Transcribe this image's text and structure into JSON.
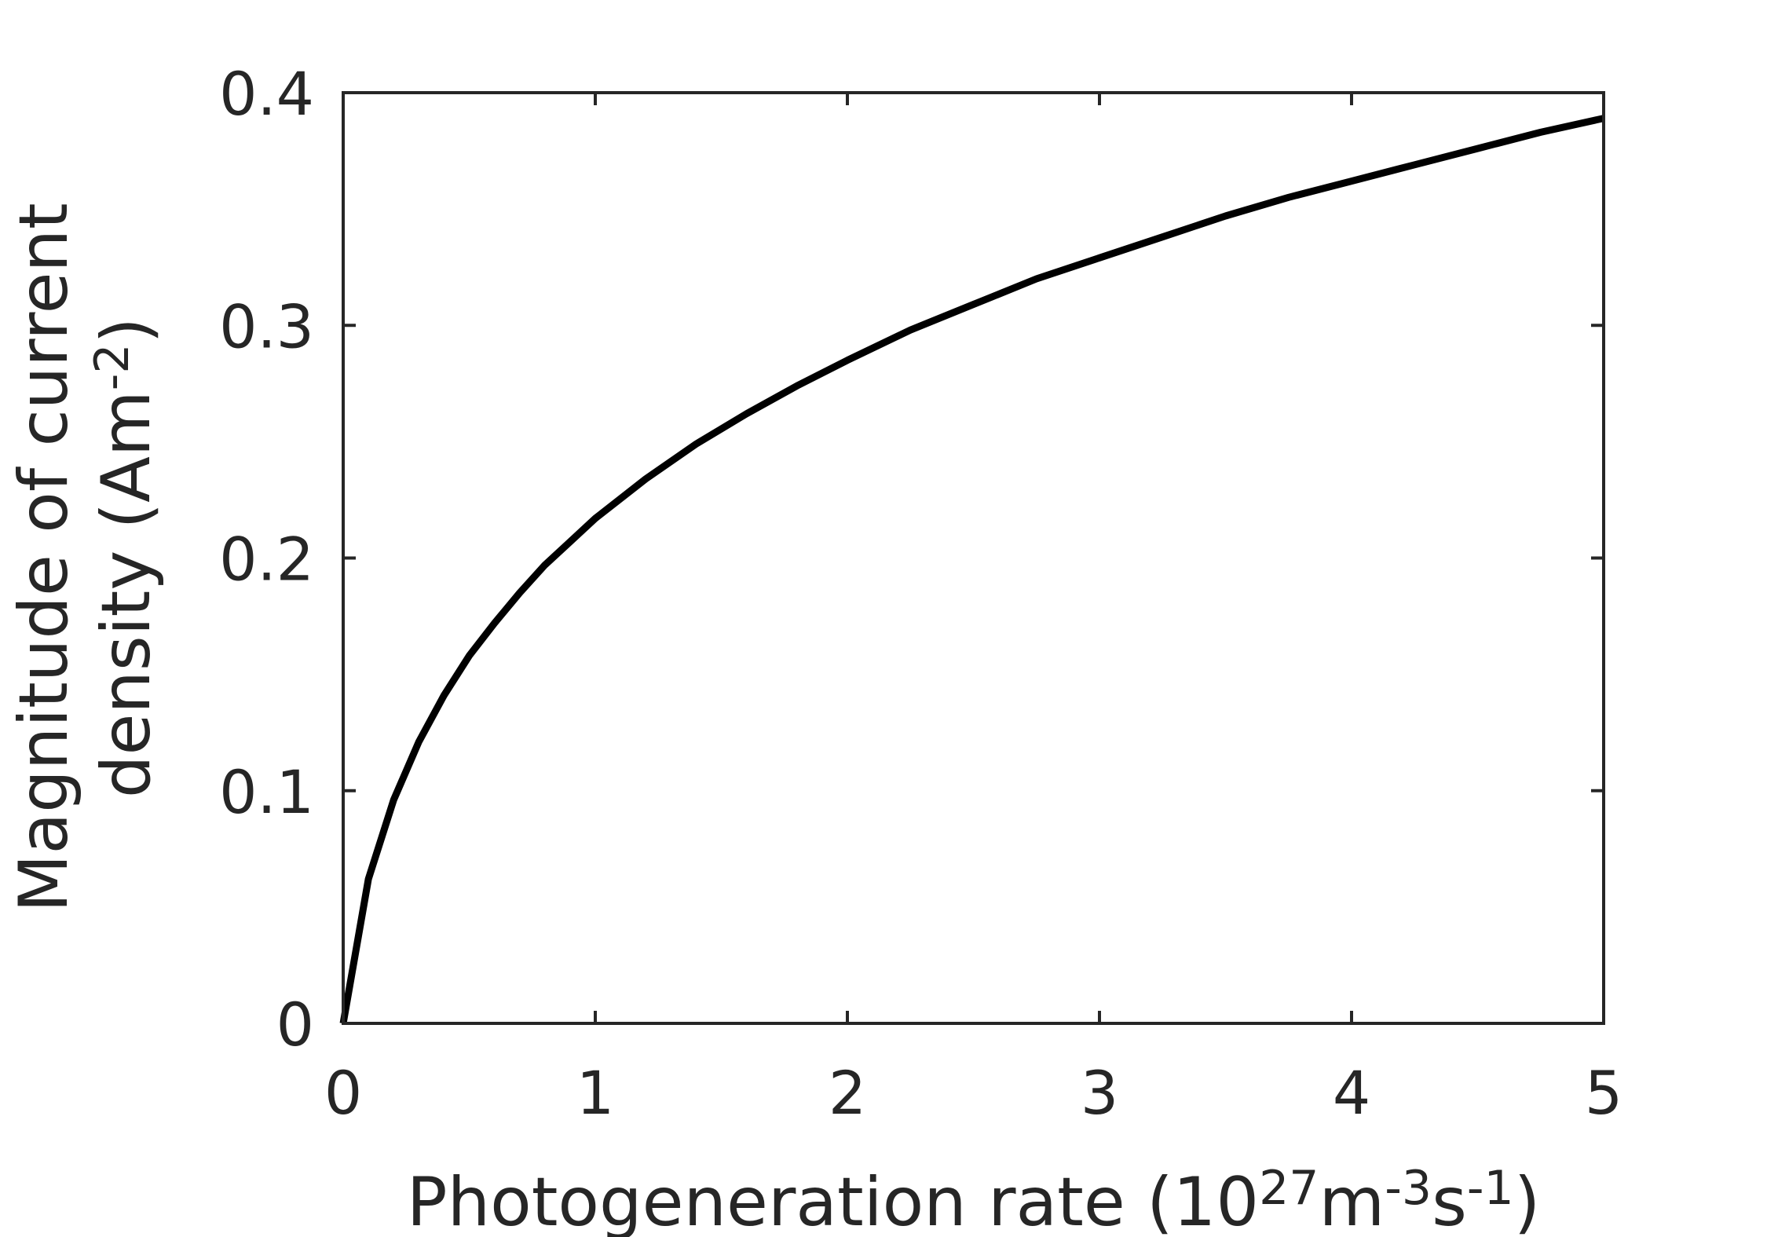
{
  "chart_data": {
    "type": "line",
    "title": "",
    "xlabel": {
      "parts": [
        {
          "text": "Photogeneration rate (10",
          "sup": false
        },
        {
          "text": "27",
          "sup": true
        },
        {
          "text": "m",
          "sup": false
        },
        {
          "text": "-3",
          "sup": true
        },
        {
          "text": "s",
          "sup": false
        },
        {
          "text": "-1",
          "sup": true
        },
        {
          "text": ")",
          "sup": false
        }
      ]
    },
    "ylabel": {
      "line1": "Magnitude of current",
      "line2_parts": [
        {
          "text": "density (Am",
          "sup": false
        },
        {
          "text": "-2",
          "sup": true
        },
        {
          "text": ")",
          "sup": false
        }
      ]
    },
    "xlim": [
      0,
      5
    ],
    "ylim": [
      0,
      0.4
    ],
    "xticks": [
      0,
      1,
      2,
      3,
      4,
      5
    ],
    "xtick_labels": [
      "0",
      "1",
      "2",
      "3",
      "4",
      "5"
    ],
    "yticks": [
      0,
      0.1,
      0.2,
      0.3,
      0.4
    ],
    "ytick_labels": [
      "0",
      "0.1",
      "0.2",
      "0.3",
      "0.4"
    ],
    "grid": false,
    "series": [
      {
        "color": "#000000",
        "x": [
          0,
          0.1,
          0.2,
          0.3,
          0.4,
          0.5,
          0.6,
          0.7,
          0.8,
          0.9,
          1.0,
          1.2,
          1.4,
          1.6,
          1.8,
          2.0,
          2.25,
          2.5,
          2.75,
          3.0,
          3.25,
          3.5,
          3.75,
          4.0,
          4.25,
          4.5,
          4.75,
          5.0
        ],
        "y": [
          0,
          0.062,
          0.096,
          0.121,
          0.141,
          0.158,
          0.172,
          0.185,
          0.197,
          0.207,
          0.217,
          0.234,
          0.249,
          0.262,
          0.274,
          0.285,
          0.298,
          0.309,
          0.32,
          0.329,
          0.338,
          0.347,
          0.355,
          0.362,
          0.369,
          0.376,
          0.383,
          0.389
        ]
      }
    ]
  }
}
